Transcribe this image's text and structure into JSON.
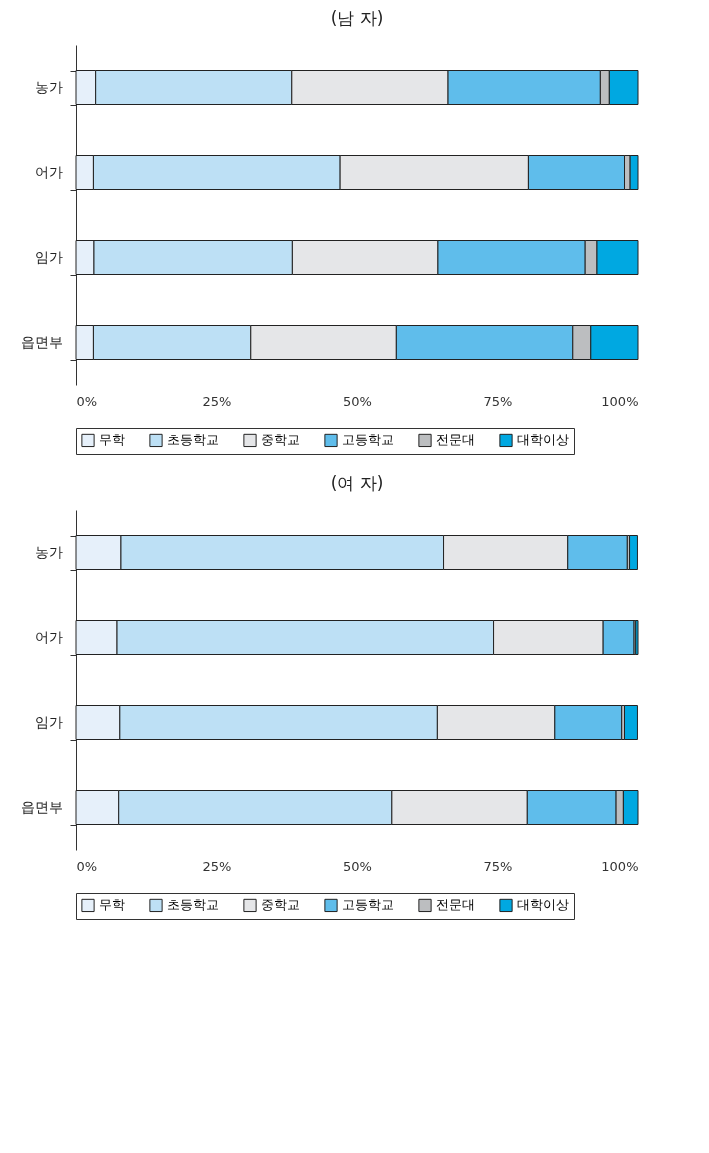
{
  "chart_data": [
    {
      "type": "bar",
      "orientation": "horizontal",
      "stacked": true,
      "title": "(남 자)",
      "categories": [
        "농가",
        "어가",
        "임가",
        "읍면부"
      ],
      "series": [
        {
          "name": "무학",
          "color": "#e6f0fa",
          "values": [
            3.5,
            3.1,
            3.2,
            3.1
          ]
        },
        {
          "name": "초등학교",
          "color": "#bde0f5",
          "values": [
            34.9,
            43.9,
            35.3,
            28.0
          ]
        },
        {
          "name": "중학교",
          "color": "#e5e6e8",
          "values": [
            27.8,
            33.5,
            25.9,
            25.9
          ]
        },
        {
          "name": "고등학교",
          "color": "#5fbdeb",
          "values": [
            27.1,
            17.1,
            26.2,
            31.4
          ]
        },
        {
          "name": "전문대",
          "color": "#bcbec0",
          "values": [
            1.6,
            1.0,
            2.1,
            3.2
          ]
        },
        {
          "name": "대학이상",
          "color": "#00a8e1",
          "values": [
            5.1,
            1.4,
            7.3,
            8.4
          ]
        }
      ],
      "xlim": [
        0,
        100
      ],
      "xticks": [
        {
          "value": 0,
          "label": "0%"
        },
        {
          "value": 25,
          "label": "25%"
        },
        {
          "value": 50,
          "label": "50%"
        },
        {
          "value": 75,
          "label": "75%"
        },
        {
          "value": 100,
          "label": "100%"
        }
      ],
      "legend": "bottom"
    },
    {
      "type": "bar",
      "orientation": "horizontal",
      "stacked": true,
      "title": "(여 자)",
      "categories": [
        "농가",
        "어가",
        "임가",
        "읍면부"
      ],
      "series": [
        {
          "name": "무학",
          "color": "#e6f0fa",
          "values": [
            8.0,
            7.3,
            7.8,
            7.6
          ]
        },
        {
          "name": "초등학교",
          "color": "#bde0f5",
          "values": [
            57.4,
            67.0,
            56.5,
            48.6
          ]
        },
        {
          "name": "중학교",
          "color": "#e5e6e8",
          "values": [
            22.1,
            19.5,
            20.9,
            24.1
          ]
        },
        {
          "name": "고등학교",
          "color": "#5fbdeb",
          "values": [
            10.6,
            5.5,
            11.9,
            15.8
          ]
        },
        {
          "name": "전문대",
          "color": "#bcbec0",
          "values": [
            0.4,
            0.3,
            0.5,
            1.3
          ]
        },
        {
          "name": "대학이상",
          "color": "#00a8e1",
          "values": [
            1.4,
            0.4,
            2.3,
            2.6
          ]
        }
      ],
      "xlim": [
        0,
        100
      ],
      "xticks": [
        {
          "value": 0,
          "label": "0%"
        },
        {
          "value": 25,
          "label": "25%"
        },
        {
          "value": 50,
          "label": "50%"
        },
        {
          "value": 75,
          "label": "75%"
        },
        {
          "value": 100,
          "label": "100%"
        }
      ],
      "legend": "bottom"
    }
  ]
}
